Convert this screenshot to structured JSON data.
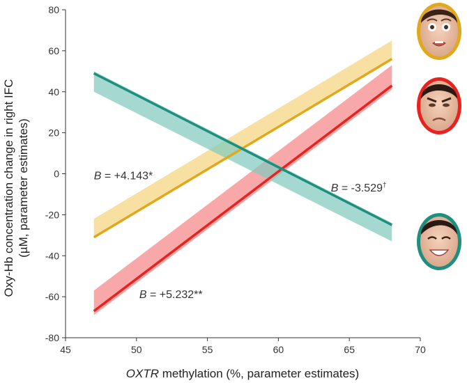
{
  "chart_data": {
    "type": "line",
    "title": "",
    "xlabel_italic": "OXTR",
    "xlabel_rest": " methylation (%, parameter estimates)",
    "ylabel_line1": "Oxy-Hb concentration change in right IFC",
    "ylabel_line2": "(µM, parameter estimates)",
    "xlim": [
      45,
      70
    ],
    "ylim": [
      -80,
      80
    ],
    "x_ticks": [
      45,
      50,
      55,
      60,
      65,
      70
    ],
    "y_ticks": [
      -80,
      -60,
      -40,
      -20,
      0,
      20,
      40,
      60,
      80
    ],
    "x_tick_labels": [
      "45",
      "50",
      "55",
      "60",
      "65",
      "70"
    ],
    "y_tick_labels": [
      "-80",
      "-60",
      "-40",
      "-20",
      "0",
      "20",
      "40",
      "60",
      "80"
    ],
    "grid": false,
    "series": [
      {
        "name": "fear",
        "face": "fearful-face",
        "color": "#e0a81c",
        "band_color": "#f5d47e",
        "x": [
          47,
          68
        ],
        "line": [
          -31,
          56
        ],
        "band_upper": [
          -22,
          65
        ],
        "band_lower": [
          -31,
          56
        ]
      },
      {
        "name": "anger",
        "face": "angry-face",
        "color": "#e8231f",
        "band_color": "#f58787",
        "x": [
          47,
          68
        ],
        "line": [
          -67,
          43
        ],
        "band_upper": [
          -57,
          53
        ],
        "band_lower": [
          -69,
          41
        ]
      },
      {
        "name": "happy",
        "face": "happy-face",
        "color": "#1e8f7e",
        "band_color": "#82cabe",
        "x": [
          47,
          68
        ],
        "line": [
          49,
          -25
        ],
        "band_upper": [
          50,
          -24
        ],
        "band_lower": [
          40,
          -33
        ]
      }
    ],
    "annotations": [
      {
        "prefix": "B",
        "value": " = +4.143*",
        "sup": "",
        "x": 47,
        "y": -1
      },
      {
        "prefix": "B",
        "value": " = -3.529",
        "sup": "†",
        "x": 63.7,
        "y": -7
      },
      {
        "prefix": "B",
        "value": " = +5.232**",
        "sup": "",
        "x": 50.2,
        "y": -59
      }
    ]
  }
}
